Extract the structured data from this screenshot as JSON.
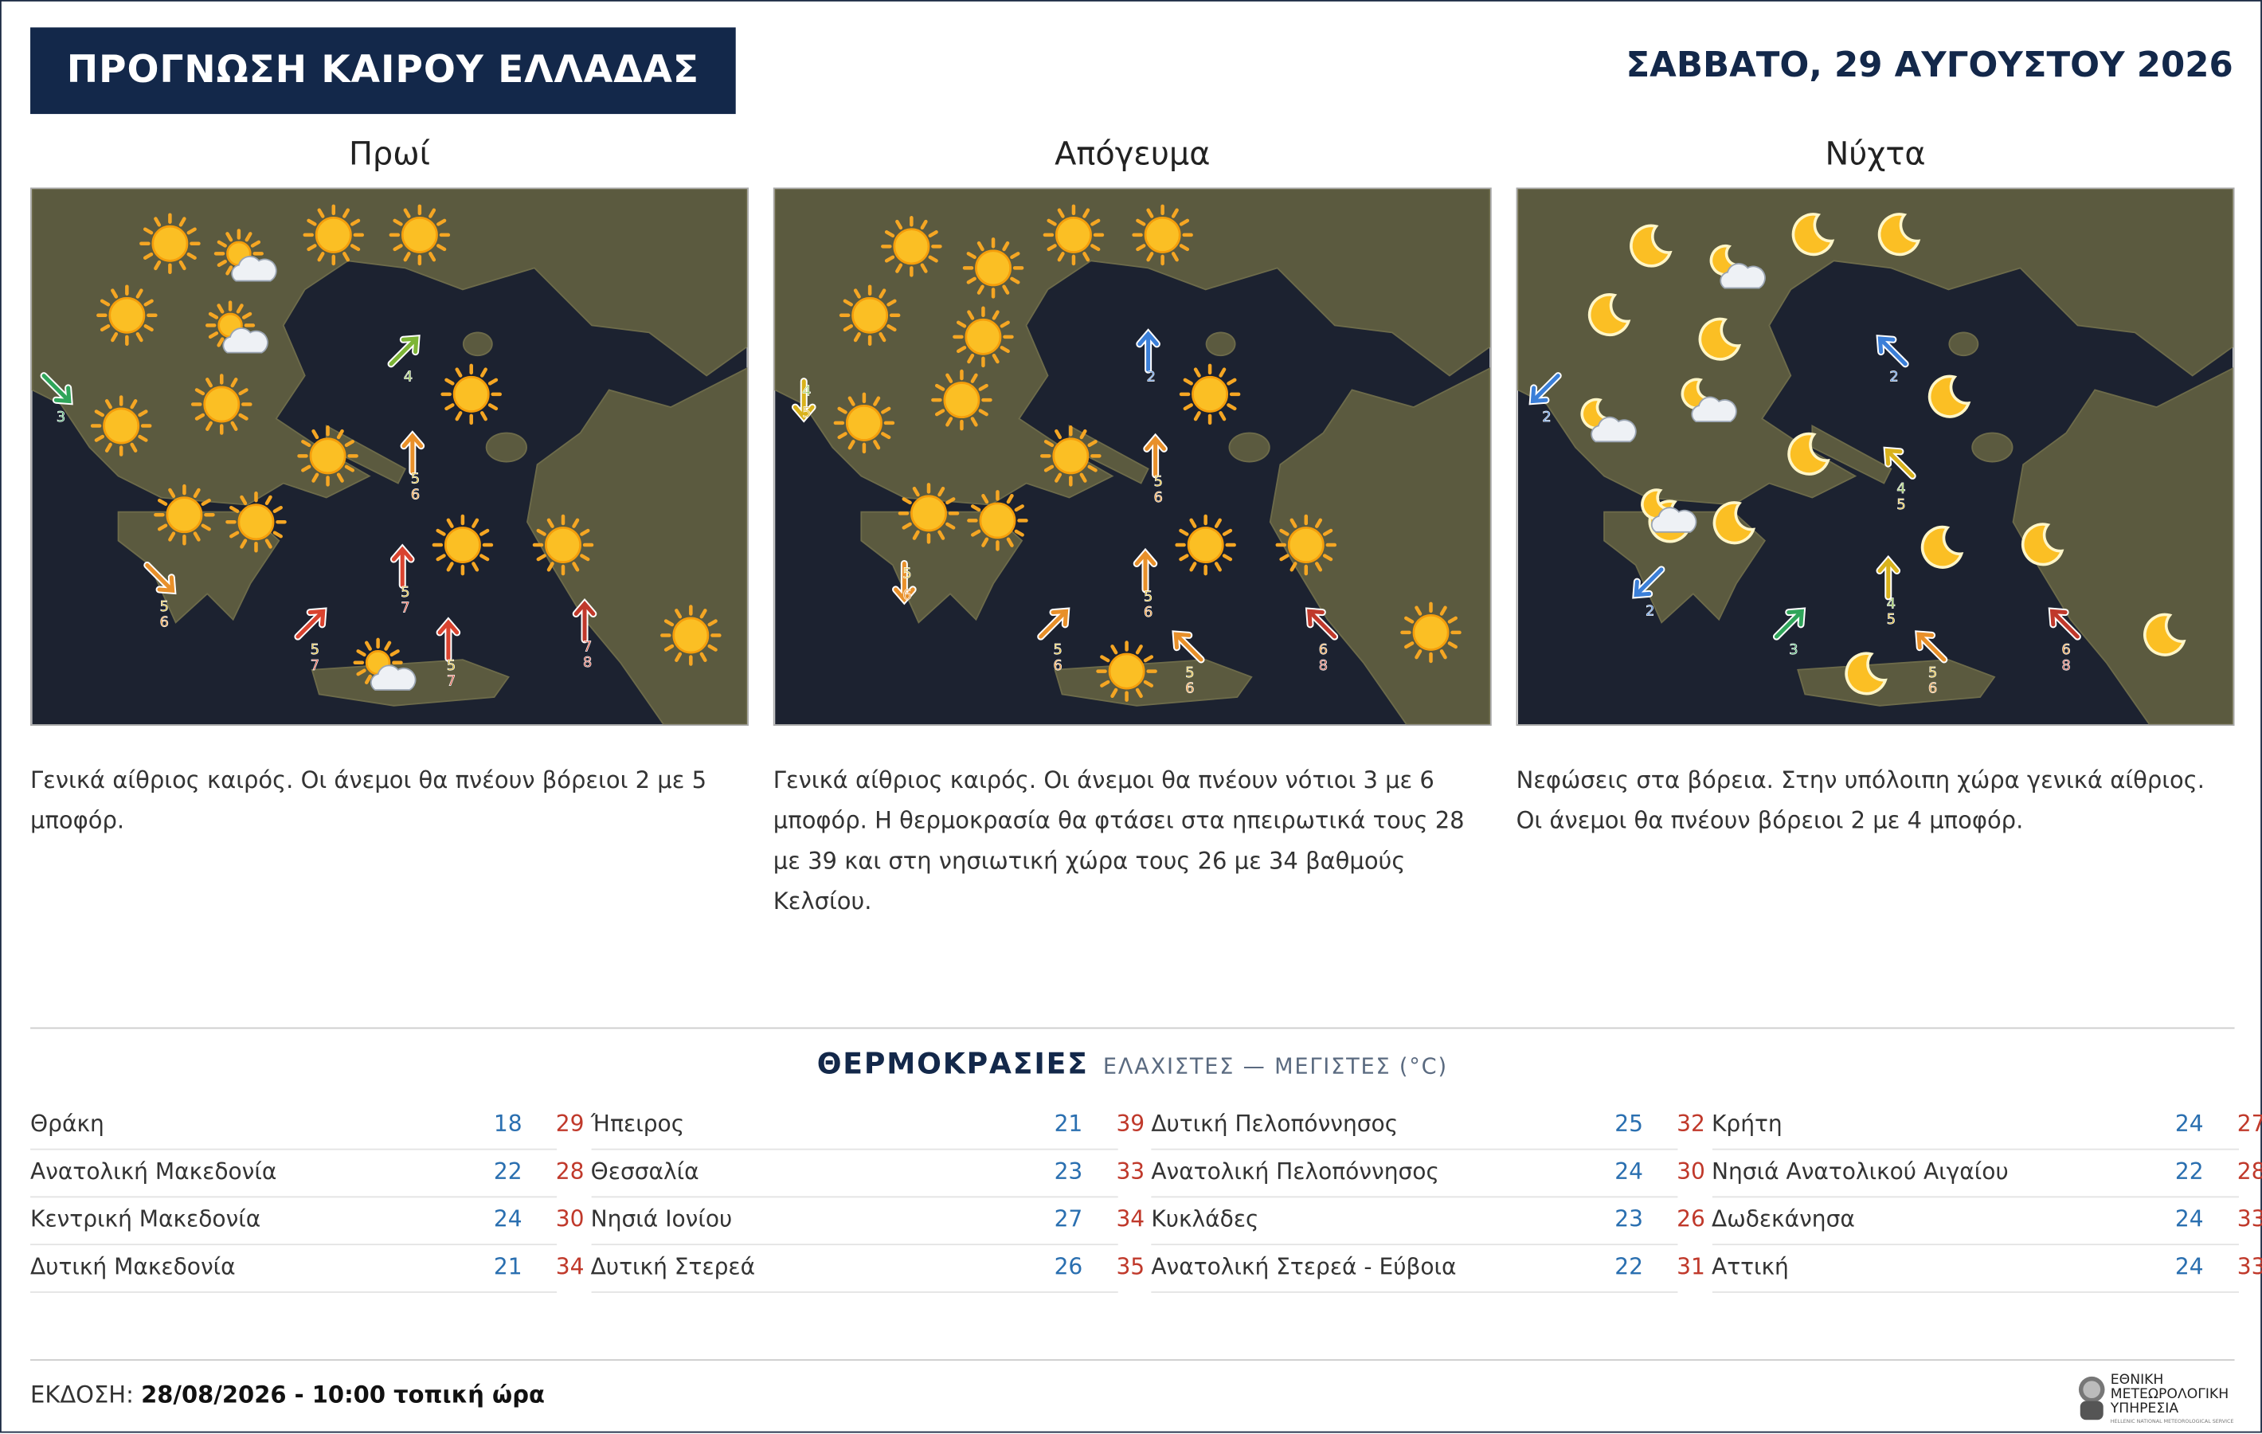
{
  "header": {
    "title": "ΠΡΟΓΝΩΣΗ ΚΑΙΡΟΥ ΕΛΛΑΔΑΣ",
    "date": "ΣΑΒΒΑΤΟ, 29 ΑΥΓΟΥΣΤΟΥ 2026"
  },
  "panels": [
    {
      "label": "Πρωί",
      "description": "Γενικά αίθριος καιρός. Οι άνεμοι θα πνέουν βόρειοι 2 με 5 μποφόρ.",
      "winds": [
        [
          3
        ],
        [
          4
        ],
        [
          5,
          6
        ],
        [
          5,
          7
        ],
        [
          5,
          7
        ],
        [
          7,
          8
        ],
        [
          5,
          6
        ],
        [
          5,
          7
        ]
      ]
    },
    {
      "label": "Απόγευμα",
      "description": "Γενικά αίθριος καιρός. Οι άνεμοι θα πνέουν νότιοι 3 με 6 μποφόρ. Η θερμοκρασία θα φτάσει στα ηπειρωτικά τους 28 με 39 και στη νησιωτική χώρα τους 26 με 34 βαθμούς Κελσίου.",
      "winds": [
        [
          4,
          5
        ],
        [
          2
        ],
        [
          5,
          6
        ],
        [
          5,
          6
        ],
        [
          5,
          6
        ],
        [
          5,
          6
        ],
        [
          5,
          6
        ],
        [
          6,
          8
        ]
      ]
    },
    {
      "label": "Νύχτα",
      "description": "Νεφώσεις στα βόρεια. Στην υπόλοιπη χώρα γενικά αίθριος. Οι άνεμοι θα πνέουν βόρειοι 2 με 4 μποφόρ.",
      "winds": [
        [
          2
        ],
        [
          2
        ],
        [
          4,
          5
        ],
        [
          4,
          5
        ],
        [
          2
        ],
        [
          3
        ],
        [
          5,
          6
        ],
        [
          6,
          8
        ]
      ]
    }
  ],
  "temperatures": {
    "title": "ΘΕΡΜΟΚΡΑΣΙΕΣ",
    "subtitle": "ΕΛΑΧΙΣΤΕΣ — ΜΕΓΙΣΤΕΣ (°C)",
    "rows": [
      [
        "Θράκη",
        18,
        29
      ],
      [
        "Ανατολική Μακεδονία",
        22,
        28
      ],
      [
        "Κεντρική Μακεδονία",
        24,
        30
      ],
      [
        "Δυτική Μακεδονία",
        21,
        34
      ],
      [
        "Ήπειρος",
        21,
        39
      ],
      [
        "Θεσσαλία",
        23,
        33
      ],
      [
        "Νησιά Ιονίου",
        27,
        34
      ],
      [
        "Δυτική Στερεά",
        26,
        35
      ],
      [
        "Δυτική Πελοπόννησος",
        25,
        32
      ],
      [
        "Ανατολική Πελοπόννησος",
        24,
        30
      ],
      [
        "Κυκλάδες",
        23,
        26
      ],
      [
        "Ανατολική Στερεά - Εύβοια",
        22,
        31
      ],
      [
        "Κρήτη",
        24,
        27
      ],
      [
        "Νησιά Ανατολικού Αιγαίου",
        22,
        28
      ],
      [
        "Δωδεκάνησα",
        24,
        33
      ],
      [
        "Αττική",
        24,
        33
      ]
    ]
  },
  "footer": {
    "issue_label": "ΕΚΔΟΣΗ:",
    "issue_time": "28/08/2026 - 10:00 τοπική ώρα",
    "logo_line1": "ΕΘΝΙΚΗ",
    "logo_line2": "ΜΕΤΕΩΡΟΛΟΓΙΚΗ",
    "logo_line3": "ΥΠΗΡΕΣΙΑ",
    "logo_en": "HELLENIC NATIONAL METEOROLOGICAL SERVICE"
  }
}
